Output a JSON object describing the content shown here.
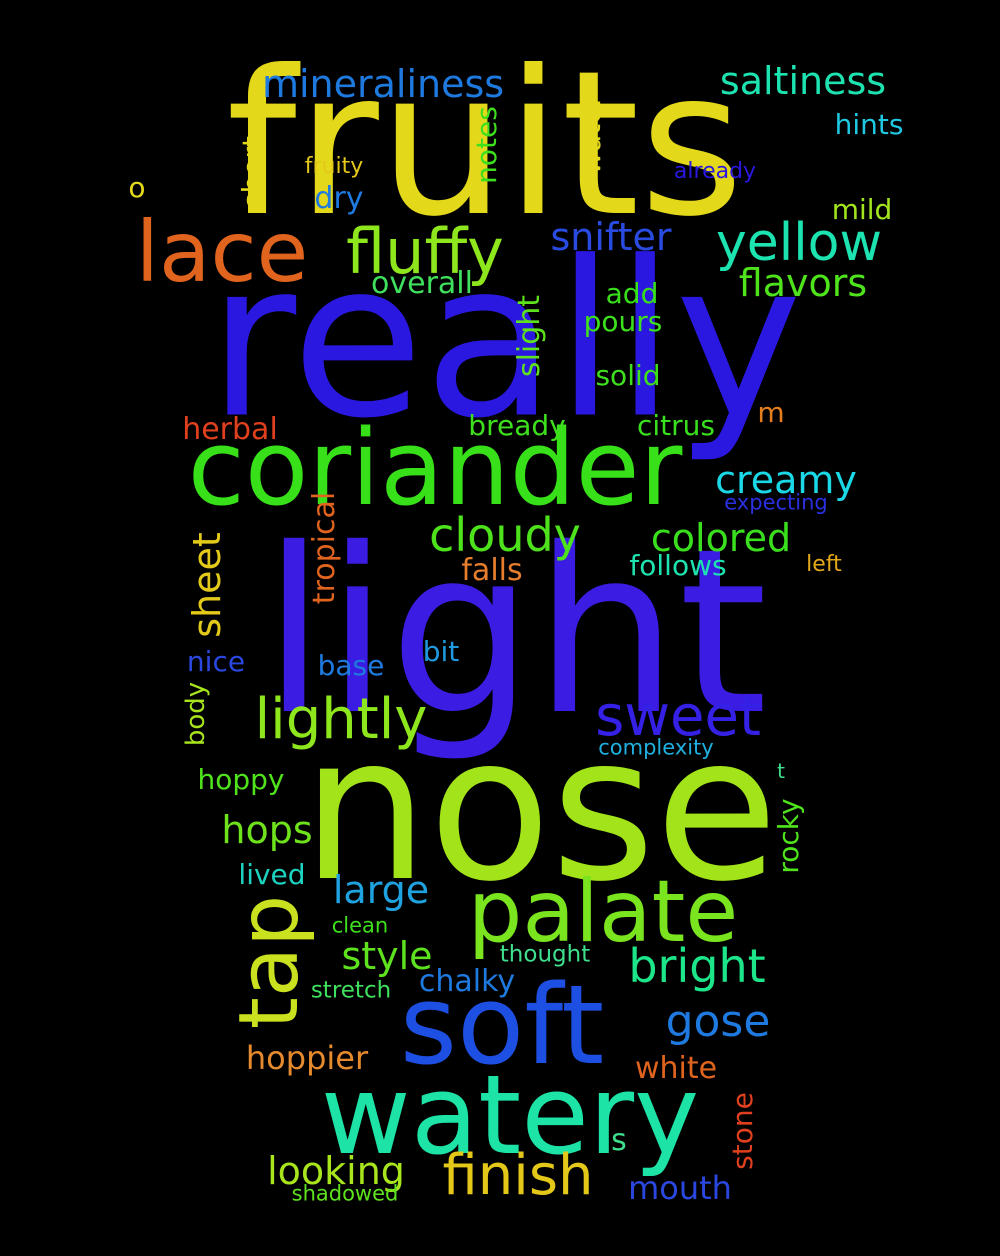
{
  "words": {
    "fruits": {
      "text": "fruits",
      "color": "#e3d81a"
    },
    "really": {
      "text": "really",
      "color": "#2a18e0"
    },
    "light": {
      "text": "light",
      "color": "#3b1ce2"
    },
    "nose": {
      "text": "nose",
      "color": "#a2e419"
    },
    "coriander": {
      "text": "coriander",
      "color": "#38e019"
    },
    "watery": {
      "text": "watery",
      "color": "#1de3a6"
    },
    "soft": {
      "text": "soft",
      "color": "#1d4fe3"
    },
    "palate": {
      "text": "palate",
      "color": "#7ae51f"
    },
    "tap": {
      "text": "tap",
      "color": "#c9e11f"
    },
    "lace": {
      "text": "lace",
      "color": "#e0641e"
    },
    "fluffy": {
      "text": "fluffy",
      "color": "#8ee61c"
    },
    "yellow": {
      "text": "yellow",
      "color": "#1ce3b0"
    },
    "lightly": {
      "text": "lightly",
      "color": "#8ee61c"
    },
    "sweet": {
      "text": "sweet",
      "color": "#3520e6"
    },
    "finish": {
      "text": "finish",
      "color": "#e3c81a"
    },
    "cloudy": {
      "text": "cloudy",
      "color": "#4de21b"
    },
    "bright": {
      "text": "bright",
      "color": "#1de68a"
    },
    "mineraliness": {
      "text": "mineraliness",
      "color": "#1f7ae0"
    },
    "saltiness": {
      "text": "saltiness",
      "color": "#1de3b0"
    },
    "snifter": {
      "text": "snifter",
      "color": "#2a4be2"
    },
    "flavors": {
      "text": "flavors",
      "color": "#4fe31c"
    },
    "creamy": {
      "text": "creamy",
      "color": "#1ad8e6"
    },
    "colored": {
      "text": "colored",
      "color": "#3ae01d"
    },
    "sheet": {
      "text": "sheet",
      "color": "#e3c91a"
    },
    "gose": {
      "text": "gose",
      "color": "#1f7ae0"
    },
    "looking": {
      "text": "looking",
      "color": "#a8e51d"
    },
    "hops": {
      "text": "hops",
      "color": "#6ee31c"
    },
    "large": {
      "text": "large",
      "color": "#1fa3e0"
    },
    "style": {
      "text": "style",
      "color": "#5ee21d"
    },
    "hoppier": {
      "text": "hoppier",
      "color": "#e68a2e"
    },
    "mouth": {
      "text": "mouth",
      "color": "#2a48e0"
    },
    "chalky": {
      "text": "chalky",
      "color": "#1f7ae0"
    },
    "white": {
      "text": "white",
      "color": "#e0641e"
    },
    "hints": {
      "text": "hints",
      "color": "#1fc7e0"
    },
    "short": {
      "text": "short",
      "color": "#e3d81a"
    },
    "notes": {
      "text": "notes",
      "color": "#3ee01d"
    },
    "water": {
      "text": "water",
      "color": "#e3d81a"
    },
    "dry": {
      "text": "dry",
      "color": "#1f7ae0"
    },
    "mild": {
      "text": "mild",
      "color": "#a2e41d"
    },
    "fruity": {
      "text": "fruity",
      "color": "#e3c81a"
    },
    "already": {
      "text": "already",
      "color": "#2a18e0"
    },
    "o": {
      "text": "o",
      "color": "#e3d81a"
    },
    "overall": {
      "text": "overall",
      "color": "#3ee05d"
    },
    "add": {
      "text": "add",
      "color": "#38e019"
    },
    "pours": {
      "text": "pours",
      "color": "#3ee01d"
    },
    "slight": {
      "text": "slight",
      "color": "#5ee21d"
    },
    "solid": {
      "text": "solid",
      "color": "#3ee01d"
    },
    "herbal": {
      "text": "herbal",
      "color": "#e0401e"
    },
    "bready": {
      "text": "bready",
      "color": "#3ee01d"
    },
    "citrus": {
      "text": "citrus",
      "color": "#38e01d"
    },
    "m": {
      "text": "m",
      "color": "#e67e1e"
    },
    "expecting": {
      "text": "expecting",
      "color": "#2a30e0"
    },
    "tropical": {
      "text": "tropical",
      "color": "#e0641e"
    },
    "falls": {
      "text": "falls",
      "color": "#e67e2e"
    },
    "follows": {
      "text": "follows",
      "color": "#1de3b0"
    },
    "left": {
      "text": "left",
      "color": "#e3a81a"
    },
    "nice": {
      "text": "nice",
      "color": "#2a48e0"
    },
    "base": {
      "text": "base",
      "color": "#1f7ae0"
    },
    "bit": {
      "text": "bit",
      "color": "#1f9ae0"
    },
    "body": {
      "text": "body",
      "color": "#a8e51d"
    },
    "complexity": {
      "text": "complexity",
      "color": "#1fb0e0"
    },
    "hoppy": {
      "text": "hoppy",
      "color": "#4fe31c"
    },
    "t": {
      "text": "t",
      "color": "#3ee08d"
    },
    "rocky": {
      "text": "rocky",
      "color": "#4fe31c"
    },
    "lived": {
      "text": "lived",
      "color": "#1dd3c0"
    },
    "clean": {
      "text": "clean",
      "color": "#3ee01d"
    },
    "thought": {
      "text": "thought",
      "color": "#3ee08d"
    },
    "stretch": {
      "text": "stretch",
      "color": "#3ee05d"
    },
    "stone": {
      "text": "stone",
      "color": "#e0401e"
    },
    "s": {
      "text": "s",
      "color": "#3ee08d"
    },
    "shadowed": {
      "text": "shadowed",
      "color": "#5ee21d"
    }
  }
}
